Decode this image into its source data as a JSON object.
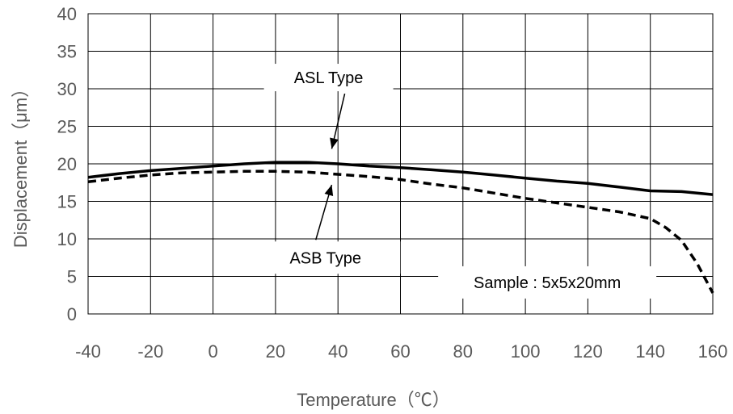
{
  "chart_data": {
    "type": "line",
    "xlabel": "Temperature（℃）",
    "ylabel": "Displacement（μm）",
    "xlim": [
      -40,
      160
    ],
    "ylim": [
      0,
      40
    ],
    "x_ticks": [
      -40,
      -20,
      0,
      20,
      40,
      60,
      80,
      100,
      120,
      140,
      160
    ],
    "y_ticks": [
      0,
      5,
      10,
      15,
      20,
      25,
      30,
      35,
      40
    ],
    "grid": true,
    "series": [
      {
        "name": "ASL Type",
        "line_style": "solid",
        "color": "#000000",
        "x": [
          -40,
          -30,
          -20,
          -10,
          0,
          10,
          20,
          30,
          40,
          50,
          60,
          70,
          80,
          90,
          100,
          110,
          120,
          130,
          140,
          150,
          160
        ],
        "y": [
          18.2,
          18.7,
          19.1,
          19.4,
          19.7,
          20.0,
          20.2,
          20.2,
          20.0,
          19.7,
          19.5,
          19.2,
          18.9,
          18.5,
          18.1,
          17.7,
          17.4,
          16.9,
          16.4,
          16.3,
          15.9
        ]
      },
      {
        "name": "ASB Type",
        "line_style": "dashed",
        "color": "#000000",
        "x": [
          -40,
          -30,
          -20,
          -10,
          0,
          10,
          20,
          30,
          40,
          50,
          60,
          70,
          80,
          90,
          100,
          110,
          120,
          130,
          140,
          145,
          150,
          155,
          160
        ],
        "y": [
          17.6,
          18.1,
          18.5,
          18.8,
          18.9,
          19.0,
          19.0,
          18.9,
          18.6,
          18.3,
          17.9,
          17.3,
          16.8,
          16.1,
          15.4,
          14.8,
          14.2,
          13.6,
          12.7,
          11.5,
          9.8,
          6.7,
          2.8
        ]
      }
    ],
    "annotations": [
      {
        "text": "ASL Type",
        "x": 37,
        "y": 31.5,
        "arrow_to": [
          38,
          22
        ]
      },
      {
        "text": "ASB Type",
        "x": 36,
        "y": 7.5,
        "arrow_to": [
          38,
          17.2
        ]
      },
      {
        "text": "Sample : 5x5x20mm",
        "x": 107,
        "y": 4.2
      }
    ]
  }
}
